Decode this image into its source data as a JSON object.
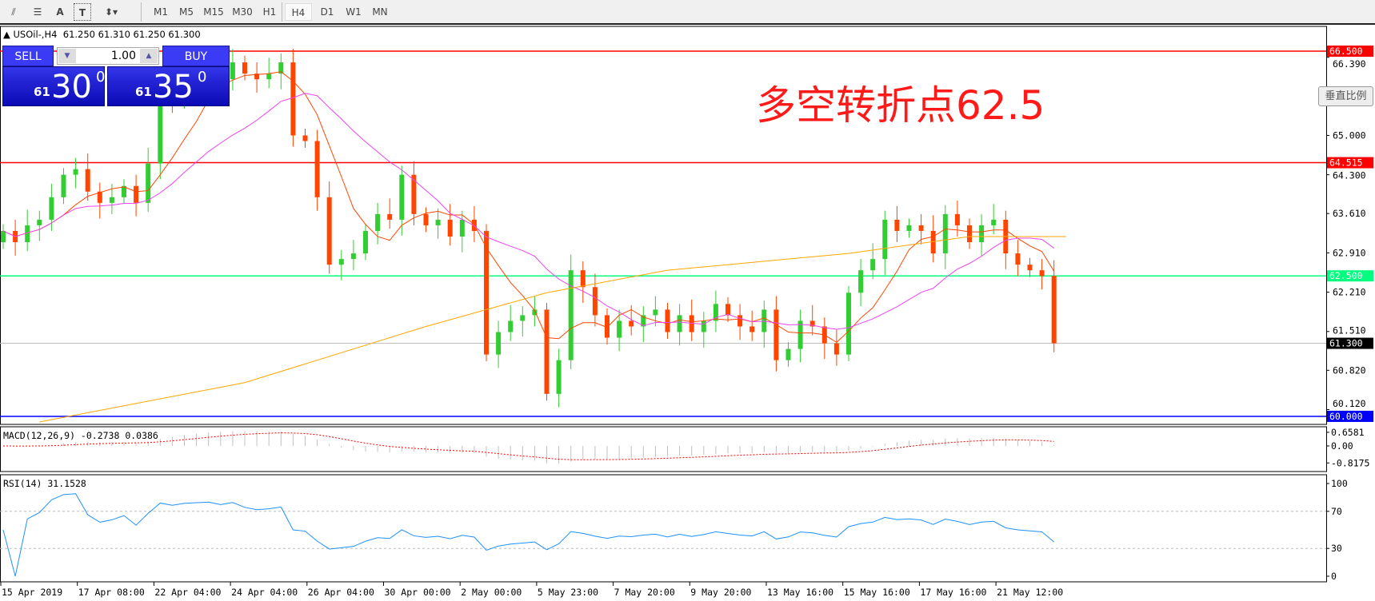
{
  "toolbar": {
    "tools": [
      {
        "icon": "fibonacci-expansion-icon"
      },
      {
        "icon": "fibonacci-fan-icon"
      },
      {
        "icon": "text-icon",
        "label": "A"
      },
      {
        "icon": "text-label-icon",
        "label": "T"
      },
      {
        "icon": "arrows-icon"
      }
    ],
    "timeframes": [
      "M1",
      "M5",
      "M15",
      "M30",
      "H1",
      "H4",
      "D1",
      "W1",
      "MN"
    ],
    "active": "H4"
  },
  "info": {
    "symbol": "USOil-,H4",
    "ohlc": "61.250 61.310 61.250 61.300"
  },
  "trade": {
    "sell": "SELL",
    "buy": "BUY",
    "lot": "1.00",
    "sell_small": "61",
    "sell_big": "30",
    "sell_sup": "0",
    "buy_small": "61",
    "buy_big": "35",
    "buy_sup": "0"
  },
  "annotation": "多空转折点62.5",
  "vscale_button": "垂直比例",
  "price_axis": {
    "ticks": [
      "66.390",
      "65.000",
      "64.300",
      "63.610",
      "62.910",
      "62.210",
      "61.510",
      "60.820",
      "60.120"
    ]
  },
  "hlines": [
    {
      "value": 66.5,
      "label": "66.500",
      "color": "#ff0000"
    },
    {
      "value": 64.515,
      "label": "64.515",
      "color": "#ff0000"
    },
    {
      "value": 62.5,
      "label": "62.500",
      "color": "#00ff7f"
    },
    {
      "value": 61.3,
      "label": "61.300",
      "color": "#c0c0c0",
      "labelbg": "#000000"
    },
    {
      "value": 60.0,
      "label": "60.000",
      "color": "#0000ff"
    }
  ],
  "colors": {
    "bull": "#32cd32",
    "bear": "#ff4500",
    "ma_fast": "#ff4500",
    "ma_mid": "#ee44ee",
    "ma_slow": "#ffa500",
    "rsi": "#1e90ff",
    "macd_signal": "#ff0000",
    "macd_hist": "#c0c0c0"
  },
  "chart_data": {
    "type": "candlestick",
    "closes": [
      63.3,
      63.1,
      63.4,
      63.5,
      63.9,
      64.3,
      64.4,
      64.0,
      63.8,
      63.9,
      64.1,
      63.8,
      64.5,
      65.7,
      65.6,
      65.9,
      66.0,
      66.1,
      66.0,
      66.3,
      66.1,
      66.0,
      66.1,
      66.3,
      65.0,
      64.9,
      63.9,
      62.7,
      62.8,
      62.9,
      63.3,
      63.6,
      63.5,
      64.3,
      63.6,
      63.4,
      63.5,
      63.2,
      63.5,
      63.3,
      61.1,
      61.5,
      61.7,
      61.8,
      61.9,
      60.4,
      61.0,
      62.6,
      62.3,
      61.8,
      61.4,
      61.7,
      61.6,
      61.8,
      61.9,
      61.5,
      61.8,
      61.5,
      61.7,
      62.0,
      61.8,
      61.6,
      61.5,
      61.9,
      61.0,
      61.2,
      61.7,
      61.6,
      61.3,
      61.1,
      62.2,
      62.6,
      62.8,
      63.5,
      63.3,
      63.4,
      63.3,
      62.9,
      63.6,
      63.4,
      63.1,
      63.4,
      63.5,
      62.9,
      62.7,
      62.6,
      62.5,
      61.3
    ],
    "ma_slow": [
      [
        3,
        59.9
      ],
      [
        20,
        60.6
      ],
      [
        35,
        61.6
      ],
      [
        45,
        62.2
      ],
      [
        55,
        62.6
      ],
      [
        70,
        62.9
      ],
      [
        80,
        63.2
      ],
      [
        88,
        63.2
      ]
    ],
    "ylim": [
      59.85,
      66.6
    ]
  },
  "macd": {
    "label": "MACD(12,26,9) -0.2738 0.0386",
    "ticks": [
      "0.6581",
      "0.00",
      "-0.8175"
    ]
  },
  "rsi": {
    "label": "RSI(14) 31.1528",
    "ticks": [
      "100",
      "70",
      "30",
      "0"
    ]
  },
  "time_axis": [
    "15 Apr 2019",
    "17 Apr 08:00",
    "22 Apr 04:00",
    "24 Apr 04:00",
    "26 Apr 04:00",
    "30 Apr 00:00",
    "2 May 00:00",
    "5 May 23:00",
    "7 May 20:00",
    "9 May 20:00",
    "13 May 16:00",
    "15 May 16:00",
    "17 May 16:00",
    "21 May 12:00"
  ]
}
